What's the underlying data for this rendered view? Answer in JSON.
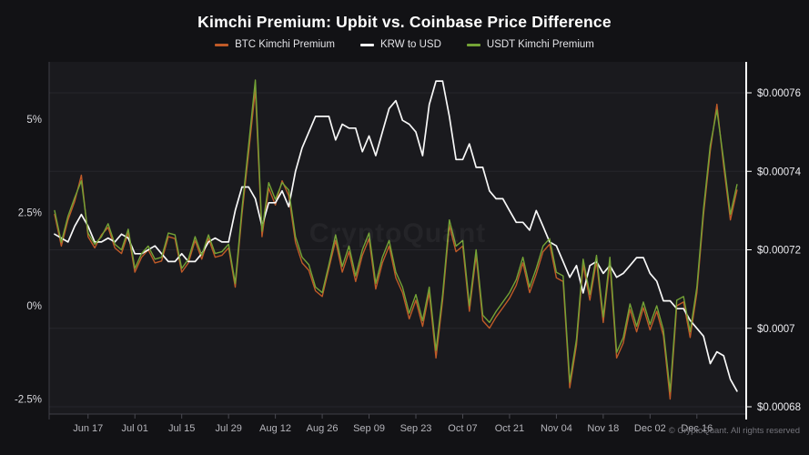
{
  "header": {
    "title": "Kimchi Premium: Upbit vs. Coinbase Price Difference"
  },
  "legend": {
    "items": [
      {
        "label": "BTC Kimchi Premium",
        "color": "#c05a28"
      },
      {
        "label": "KRW to USD",
        "color": "#f2f2f2"
      },
      {
        "label": "USDT Kimchi Premium",
        "color": "#74a336"
      }
    ]
  },
  "watermark": {
    "text": "CryptoQuant"
  },
  "footer": {
    "copyright": "© CryptoQuant. All rights reserved"
  },
  "chart_data": {
    "type": "line",
    "title": "Kimchi Premium: Upbit vs. Coinbase Price Difference",
    "legend_position": "top",
    "grid": "horizontal-on-right-axis-ticks",
    "x_start_date": "Jun 07",
    "x_end_date": "Dec 26",
    "x_step_days": 2,
    "x_tick_labels": [
      "Jun 17",
      "Jul 01",
      "Jul 15",
      "Jul 29",
      "Aug 12",
      "Aug 26",
      "Sep 09",
      "Sep 23",
      "Oct 07",
      "Oct 21",
      "Nov 04",
      "Nov 18",
      "Dec 02",
      "Dec 16"
    ],
    "x_tick_days": [
      10,
      24,
      38,
      52,
      66,
      80,
      94,
      108,
      122,
      136,
      150,
      164,
      178,
      192
    ],
    "left_axis": {
      "unit": "%",
      "range_top": 6.5,
      "range_bottom": -2.9,
      "ticks": [
        {
          "label": "5%",
          "value": 5
        },
        {
          "label": "2.5%",
          "value": 2.5
        },
        {
          "label": "0%",
          "value": 0
        },
        {
          "label": "-2.5%",
          "value": -2.5
        }
      ]
    },
    "right_axis": {
      "unit": "USD per KRW",
      "ticks": [
        {
          "label": "$0.00076",
          "value": 0.00076
        },
        {
          "label": "$0.00074",
          "value": 0.00074
        },
        {
          "label": "$0.00072",
          "value": 0.00072
        },
        {
          "label": "$0.0007",
          "value": 0.0007
        },
        {
          "label": "$0.00068",
          "value": 0.00068
        }
      ]
    },
    "series": [
      {
        "name": "BTC Kimchi Premium",
        "axis": "left",
        "color": "#c05a28",
        "values": [
          2.45,
          1.6,
          2.3,
          2.8,
          3.5,
          1.85,
          1.55,
          1.9,
          2.1,
          1.55,
          1.4,
          1.95,
          0.9,
          1.3,
          1.5,
          1.15,
          1.2,
          1.85,
          1.8,
          0.9,
          1.15,
          1.75,
          1.25,
          1.8,
          1.3,
          1.35,
          1.55,
          0.5,
          2.45,
          4.1,
          5.8,
          1.85,
          3.15,
          2.7,
          3.35,
          2.95,
          1.7,
          1.15,
          0.95,
          0.4,
          0.25,
          1.0,
          1.75,
          0.9,
          1.45,
          0.65,
          1.35,
          1.8,
          0.45,
          1.15,
          1.6,
          0.75,
          0.35,
          -0.35,
          0.15,
          -0.55,
          0.35,
          -1.4,
          0.15,
          2.15,
          1.45,
          1.6,
          -0.15,
          1.35,
          -0.4,
          -0.6,
          -0.3,
          -0.05,
          0.2,
          0.55,
          1.15,
          0.35,
          0.85,
          1.45,
          1.65,
          0.75,
          0.65,
          -2.2,
          -1.05,
          1.1,
          0.15,
          1.2,
          -0.45,
          1.15,
          -1.4,
          -1.0,
          -0.1,
          -0.7,
          -0.05,
          -0.65,
          -0.15,
          -0.8,
          -2.5,
          0.0,
          0.1,
          -0.85,
          0.35,
          2.45,
          4.15,
          5.4,
          3.75,
          2.3,
          3.1
        ]
      },
      {
        "name": "KRW to USD",
        "axis": "right",
        "color": "#f8f8f8",
        "values": [
          0.000724,
          0.000723,
          0.000722,
          0.000726,
          0.000729,
          0.000726,
          0.000722,
          0.000722,
          0.000723,
          0.000722,
          0.000724,
          0.000723,
          0.000719,
          0.000719,
          0.00072,
          0.000721,
          0.000719,
          0.000717,
          0.000717,
          0.000719,
          0.000717,
          0.000717,
          0.000719,
          0.000722,
          0.000723,
          0.000722,
          0.000722,
          0.00073,
          0.000736,
          0.000736,
          0.000733,
          0.000726,
          0.000732,
          0.000732,
          0.000735,
          0.000731,
          0.00074,
          0.000746,
          0.00075,
          0.000754,
          0.000754,
          0.000754,
          0.000748,
          0.000752,
          0.000751,
          0.000751,
          0.000745,
          0.000749,
          0.000744,
          0.00075,
          0.000756,
          0.000758,
          0.000753,
          0.000752,
          0.00075,
          0.000744,
          0.000757,
          0.000763,
          0.000763,
          0.000754,
          0.000743,
          0.000743,
          0.000747,
          0.000741,
          0.000741,
          0.000735,
          0.000733,
          0.000733,
          0.00073,
          0.000727,
          0.000727,
          0.000725,
          0.00073,
          0.000726,
          0.000722,
          0.000721,
          0.000717,
          0.000713,
          0.000716,
          0.000709,
          0.000716,
          0.000717,
          0.000714,
          0.000716,
          0.000713,
          0.000714,
          0.000716,
          0.000718,
          0.000718,
          0.000714,
          0.000712,
          0.000707,
          0.000707,
          0.000705,
          0.000705,
          0.000702,
          0.0007,
          0.000698,
          0.000691,
          0.000694,
          0.000693,
          0.000687,
          0.000684
        ]
      },
      {
        "name": "USDT Kimchi Premium",
        "axis": "left",
        "color": "#74a336",
        "values": [
          2.55,
          1.7,
          2.4,
          2.9,
          3.35,
          1.95,
          1.65,
          1.85,
          2.2,
          1.65,
          1.5,
          2.05,
          1.0,
          1.4,
          1.6,
          1.25,
          1.3,
          1.95,
          1.9,
          1.0,
          1.25,
          1.85,
          1.35,
          1.9,
          1.4,
          1.45,
          1.65,
          0.6,
          2.6,
          4.3,
          6.05,
          2.0,
          3.3,
          2.85,
          3.3,
          3.1,
          1.85,
          1.3,
          1.1,
          0.5,
          0.35,
          1.1,
          1.9,
          1.05,
          1.6,
          0.8,
          1.5,
          1.95,
          0.6,
          1.3,
          1.75,
          0.9,
          0.5,
          -0.2,
          0.3,
          -0.4,
          0.5,
          -1.2,
          0.3,
          2.3,
          1.6,
          1.75,
          0.0,
          1.5,
          -0.25,
          -0.45,
          -0.15,
          0.1,
          0.35,
          0.7,
          1.3,
          0.5,
          1.0,
          1.6,
          1.8,
          0.9,
          0.8,
          -2.05,
          -0.9,
          1.25,
          0.3,
          1.35,
          -0.3,
          1.3,
          -1.25,
          -0.85,
          0.05,
          -0.55,
          0.1,
          -0.5,
          0.0,
          -0.65,
          -2.3,
          0.15,
          0.25,
          -0.7,
          0.5,
          2.6,
          4.3,
          5.25,
          3.9,
          2.45,
          3.25
        ]
      }
    ]
  }
}
